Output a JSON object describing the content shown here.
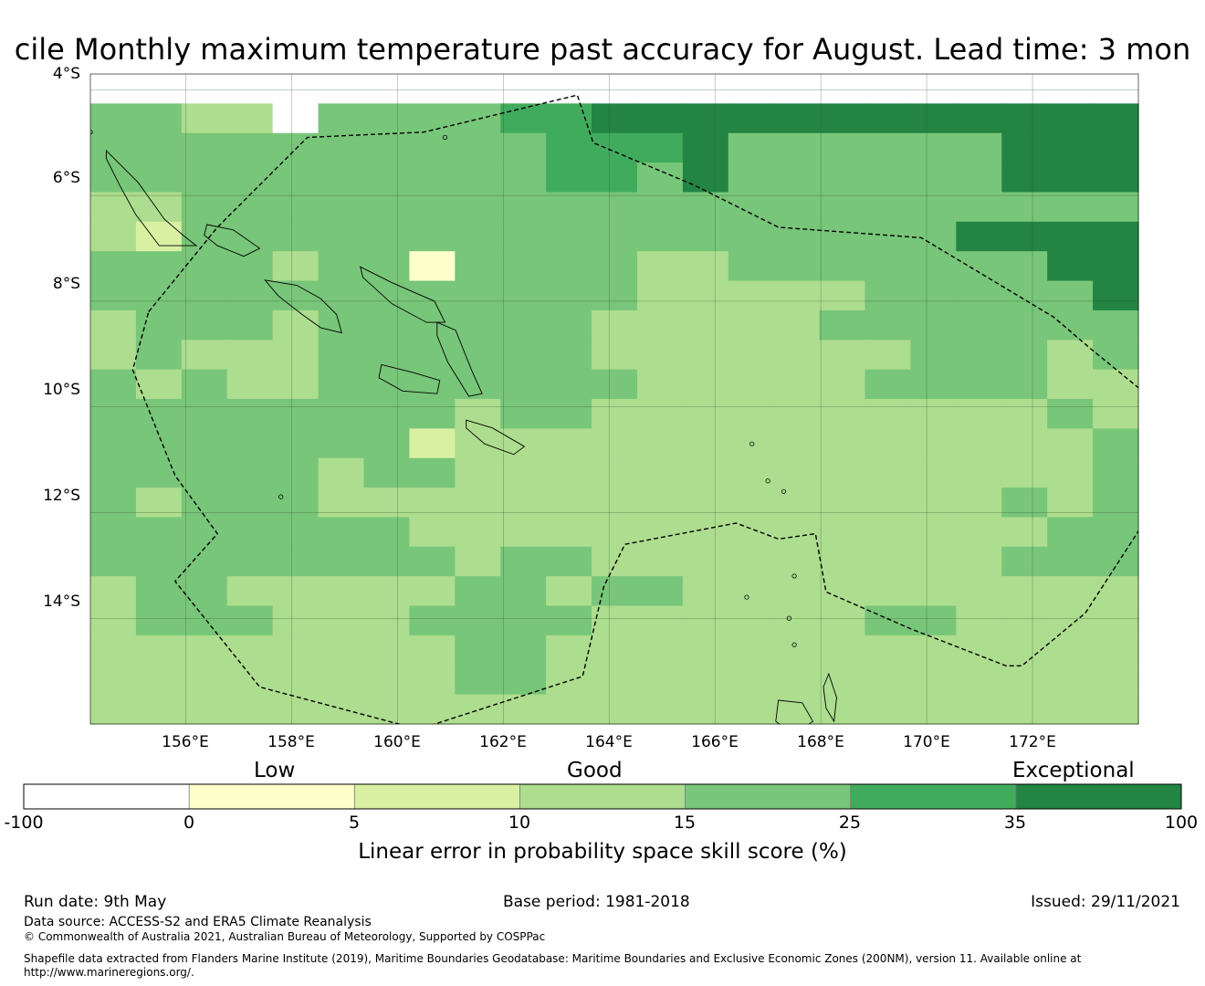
{
  "title": "cile Monthly maximum temperature past accuracy for August. Lead time: 3 mon",
  "map": {
    "lat_range": [
      -16.0,
      -3.7
    ],
    "lon_range": [
      154.2,
      174.0
    ],
    "lat_ticks": [
      "4°S",
      "6°S",
      "8°S",
      "10°S",
      "12°S",
      "14°S"
    ],
    "lon_ticks": [
      "156°E",
      "158°E",
      "160°E",
      "162°E",
      "164°E",
      "166°E",
      "168°E",
      "170°E",
      "172°E"
    ],
    "grid_lat_values": [
      -4,
      -6,
      -8,
      -10,
      -12,
      -14
    ],
    "grid_lon_values": [
      156,
      158,
      160,
      162,
      164,
      166,
      168,
      170,
      172
    ],
    "skill_grid_note": "Skill class per 0.83-degree cell, rows north to south; class index into colorbar.colors",
    "skill_grid_rows": [
      "00000000000000000000000",
      "44330444455666666666666",
      "44444444445556444444666",
      "44444444445546444444666",
      "33444444444444444444444",
      "32444444444444444446666",
      "44443441444433444444466",
      "44444444444433333444446",
      "34443444444333334444444",
      "34333444444333333344434",
      "43433444444433333444433",
      "44444444344333333333343",
      "44444442333333333333334",
      "44444344333333333333334",
      "43444333333333333333434",
      "44444443333333333333344",
      "44444444344333333333444",
      "34433333443443333333333",
      "34443334444333333443333",
      "33333333443333333333333",
      "33333333443333333333333",
      "33333333333333333333333"
    ],
    "eez_boundary": [
      [
        155.3,
        -8.2
      ],
      [
        156.6,
        -6.6
      ],
      [
        158.3,
        -4.9
      ],
      [
        160.5,
        -4.8
      ],
      [
        163.4,
        -4.1
      ],
      [
        163.7,
        -5.0
      ],
      [
        165.6,
        -5.8
      ],
      [
        167.2,
        -6.6
      ],
      [
        169.9,
        -6.8
      ],
      [
        172.4,
        -8.3
      ],
      [
        173.1,
        -8.9
      ],
      [
        174.2,
        -9.8
      ],
      [
        174.6,
        -10.9
      ],
      [
        174.1,
        -12.2
      ],
      [
        173.0,
        -13.9
      ],
      [
        171.8,
        -14.9
      ],
      [
        171.5,
        -14.9
      ],
      [
        169.7,
        -14.2
      ],
      [
        168.1,
        -13.5
      ],
      [
        167.9,
        -12.4
      ],
      [
        167.2,
        -12.5
      ],
      [
        166.4,
        -12.2
      ],
      [
        164.3,
        -12.6
      ],
      [
        163.9,
        -13.4
      ],
      [
        163.5,
        -15.1
      ],
      [
        160.4,
        -16.1
      ],
      [
        157.4,
        -15.3
      ],
      [
        155.8,
        -13.3
      ],
      [
        156.6,
        -12.4
      ],
      [
        155.8,
        -11.3
      ],
      [
        155.0,
        -9.3
      ]
    ],
    "islands": [
      [
        [
          154.5,
          -5.15
        ],
        [
          155.1,
          -5.75
        ],
        [
          155.6,
          -6.45
        ],
        [
          155.95,
          -6.75
        ],
        [
          156.2,
          -6.95
        ],
        [
          155.5,
          -6.95
        ],
        [
          155.05,
          -6.35
        ],
        [
          154.75,
          -5.8
        ],
        [
          154.5,
          -5.3
        ]
      ],
      [
        [
          156.4,
          -6.55
        ],
        [
          156.9,
          -6.65
        ],
        [
          157.4,
          -7.0
        ],
        [
          157.1,
          -7.15
        ],
        [
          156.6,
          -6.95
        ],
        [
          156.35,
          -6.75
        ]
      ],
      [
        [
          157.5,
          -7.6
        ],
        [
          158.1,
          -7.7
        ],
        [
          158.55,
          -7.95
        ],
        [
          158.85,
          -8.25
        ],
        [
          158.95,
          -8.6
        ],
        [
          158.55,
          -8.5
        ],
        [
          158.2,
          -8.25
        ],
        [
          157.75,
          -7.9
        ]
      ],
      [
        [
          159.3,
          -7.35
        ],
        [
          159.9,
          -7.65
        ],
        [
          160.7,
          -8.0
        ],
        [
          160.9,
          -8.4
        ],
        [
          160.55,
          -8.4
        ],
        [
          159.9,
          -8.05
        ],
        [
          159.35,
          -7.55
        ]
      ],
      [
        [
          160.75,
          -8.4
        ],
        [
          161.1,
          -8.55
        ],
        [
          161.4,
          -9.3
        ],
        [
          161.6,
          -9.75
        ],
        [
          161.35,
          -9.8
        ],
        [
          160.95,
          -9.15
        ],
        [
          160.75,
          -8.65
        ]
      ],
      [
        [
          159.7,
          -9.2
        ],
        [
          160.3,
          -9.35
        ],
        [
          160.8,
          -9.5
        ],
        [
          160.75,
          -9.75
        ],
        [
          160.1,
          -9.7
        ],
        [
          159.65,
          -9.45
        ]
      ],
      [
        [
          161.3,
          -10.25
        ],
        [
          161.8,
          -10.4
        ],
        [
          162.4,
          -10.75
        ],
        [
          162.2,
          -10.9
        ],
        [
          161.65,
          -10.7
        ],
        [
          161.3,
          -10.4
        ]
      ],
      [
        [
          167.2,
          -15.55
        ],
        [
          167.65,
          -15.6
        ],
        [
          167.85,
          -15.95
        ],
        [
          167.5,
          -16.2
        ],
        [
          167.15,
          -15.95
        ]
      ],
      [
        [
          168.15,
          -15.05
        ],
        [
          168.3,
          -15.5
        ],
        [
          168.25,
          -15.95
        ],
        [
          168.1,
          -15.7
        ],
        [
          168.05,
          -15.3
        ]
      ]
    ],
    "islets": [
      [
        154.2,
        -4.8
      ],
      [
        160.9,
        -4.9
      ],
      [
        157.8,
        -11.7
      ],
      [
        166.7,
        -10.7
      ],
      [
        167.0,
        -11.4
      ],
      [
        167.3,
        -11.6
      ],
      [
        167.4,
        -14.0
      ],
      [
        167.5,
        -14.5
      ],
      [
        167.5,
        -13.2
      ],
      [
        166.6,
        -13.6
      ]
    ]
  },
  "colorbar": {
    "category_labels": [
      "Low",
      "Good",
      "Exceptional"
    ],
    "tick_labels": [
      "-100",
      "0",
      "5",
      "10",
      "15",
      "25",
      "35",
      "100"
    ],
    "colors": [
      "#ffffff",
      "#ffffcc",
      "#d9f0a3",
      "#addd8e",
      "#78c679",
      "#41ab5d",
      "#238443"
    ],
    "axis_label": "Linear error in probability space skill score (%)"
  },
  "footer": {
    "run_date": "Run date: 9th May",
    "base_period": "Base period: 1981-2018",
    "issued": "Issued: 29/11/2021",
    "data_source": "Data source: ACCESS-S2 and ERA5 Climate Reanalysis",
    "copyright": "© Commonwealth of Australia 2021, Australian Bureau of Meteorology, Supported by COSPPac",
    "shapefile_line1": "Shapefile data extracted from Flanders Marine Institute (2019), Maritime Boundaries Geodatabase: Maritime Boundaries and Exclusive Economic Zones (200NM), version 11. Available online at",
    "shapefile_line2": "http://www.marineregions.org/."
  }
}
